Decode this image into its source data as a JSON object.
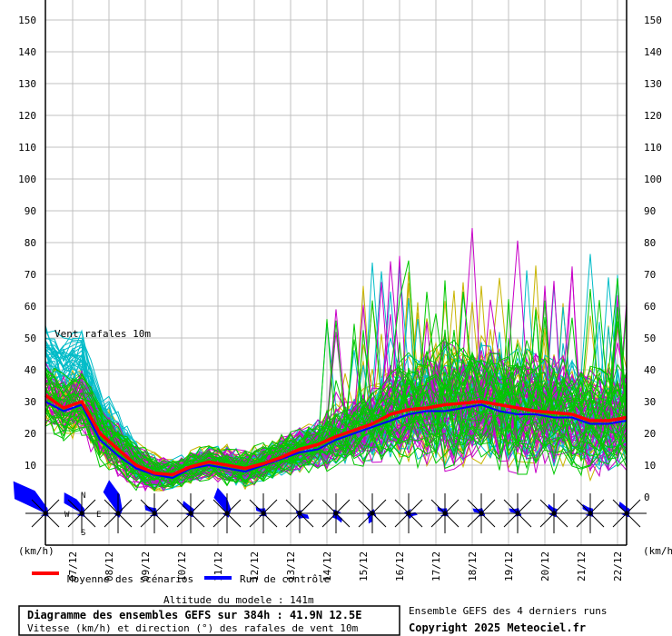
{
  "chart_data": {
    "type": "line",
    "title": "Diagramme des ensembles GEFS sur 384h : 41.9N 12.5E",
    "subtitle": "Vitesse (km/h) et direction (°) des rafales de vent 10m",
    "inner_label": "Vent rafales 10m",
    "ylabel_left": "(km/h)",
    "ylabel_right": "(km/h)",
    "altitude": "Altitude du modele : 141m",
    "source": "Ensemble GEFS des 4 derniers runs",
    "copyright": "Copyright 2025 Meteociel.fr",
    "ylim": [
      0,
      150
    ],
    "xlim_hours": [
      0,
      384
    ],
    "yticks": [
      0,
      10,
      20,
      30,
      40,
      50,
      60,
      70,
      80,
      90,
      100,
      110,
      120,
      130,
      140,
      150
    ],
    "date_ticks": [
      {
        "label": "07/12",
        "hour": 18
      },
      {
        "label": "08/12",
        "hour": 42
      },
      {
        "label": "09/12",
        "hour": 66
      },
      {
        "label": "10/12",
        "hour": 90
      },
      {
        "label": "11/12",
        "hour": 114
      },
      {
        "label": "12/12",
        "hour": 138
      },
      {
        "label": "13/12",
        "hour": 162
      },
      {
        "label": "14/12",
        "hour": 186
      },
      {
        "label": "15/12",
        "hour": 210
      },
      {
        "label": "16/12",
        "hour": 234
      },
      {
        "label": "17/12",
        "hour": 258
      },
      {
        "label": "18/12",
        "hour": 282
      },
      {
        "label": "19/12",
        "hour": 306
      },
      {
        "label": "20/12",
        "hour": 330
      },
      {
        "label": "21/12",
        "hour": 354
      },
      {
        "label": "22/12",
        "hour": 378
      }
    ],
    "legend": [
      {
        "label": "Moyenne des scénarios",
        "color": "#ff0000"
      },
      {
        "label": "Run de contrôle",
        "color": "#0000ff"
      }
    ],
    "mean": {
      "step_hours": 12,
      "values": [
        32,
        28,
        30,
        20,
        15,
        10,
        7.5,
        7,
        9.5,
        11,
        10,
        9,
        10.5,
        12.5,
        15,
        16.5,
        19,
        21,
        23,
        26,
        27.5,
        28,
        29,
        29.5,
        30,
        29,
        28,
        27,
        26.5,
        26,
        24,
        24,
        25
      ]
    },
    "control": {
      "step_hours": 12,
      "values": [
        30,
        27,
        29,
        18,
        13,
        9,
        7,
        6,
        9,
        10,
        9,
        8,
        10,
        12,
        14,
        15,
        18,
        20,
        22,
        24,
        26,
        27,
        27,
        28,
        29,
        27,
        26,
        26,
        25,
        25,
        23,
        23,
        24
      ]
    },
    "ensemble": {
      "members_per_run": 30,
      "runs": [
        {
          "color": "#c8b400"
        },
        {
          "color": "#00c800"
        },
        {
          "color": "#c800c8"
        },
        {
          "color": "#00bcc8"
        }
      ],
      "spread_step_hours": 24,
      "spread": [
        8,
        9,
        7,
        5,
        4,
        5,
        5,
        6,
        8,
        10,
        14,
        16,
        16,
        16,
        15,
        14,
        13
      ]
    },
    "wind_roses": {
      "step_hours": 24,
      "color": "#0000ff",
      "compass": {
        "n": "N",
        "s": "S",
        "e": "E",
        "w": "W"
      },
      "items": [
        {
          "dir": 315,
          "strength": 50
        },
        {
          "dir": 320,
          "strength": 30
        },
        {
          "dir": 345,
          "strength": 38
        },
        {
          "dir": 310,
          "strength": 14
        },
        {
          "dir": 330,
          "strength": 16
        },
        {
          "dir": 340,
          "strength": 30
        },
        {
          "dir": 310,
          "strength": 11
        },
        {
          "dir": 120,
          "strength": 12
        },
        {
          "dir": 150,
          "strength": 12
        },
        {
          "dir": 200,
          "strength": 12
        },
        {
          "dir": 100,
          "strength": 10
        },
        {
          "dir": 310,
          "strength": 11
        },
        {
          "dir": 300,
          "strength": 11
        },
        {
          "dir": 300,
          "strength": 11
        },
        {
          "dir": 330,
          "strength": 12
        },
        {
          "dir": 320,
          "strength": 13
        },
        {
          "dir": 330,
          "strength": 15
        }
      ]
    }
  }
}
